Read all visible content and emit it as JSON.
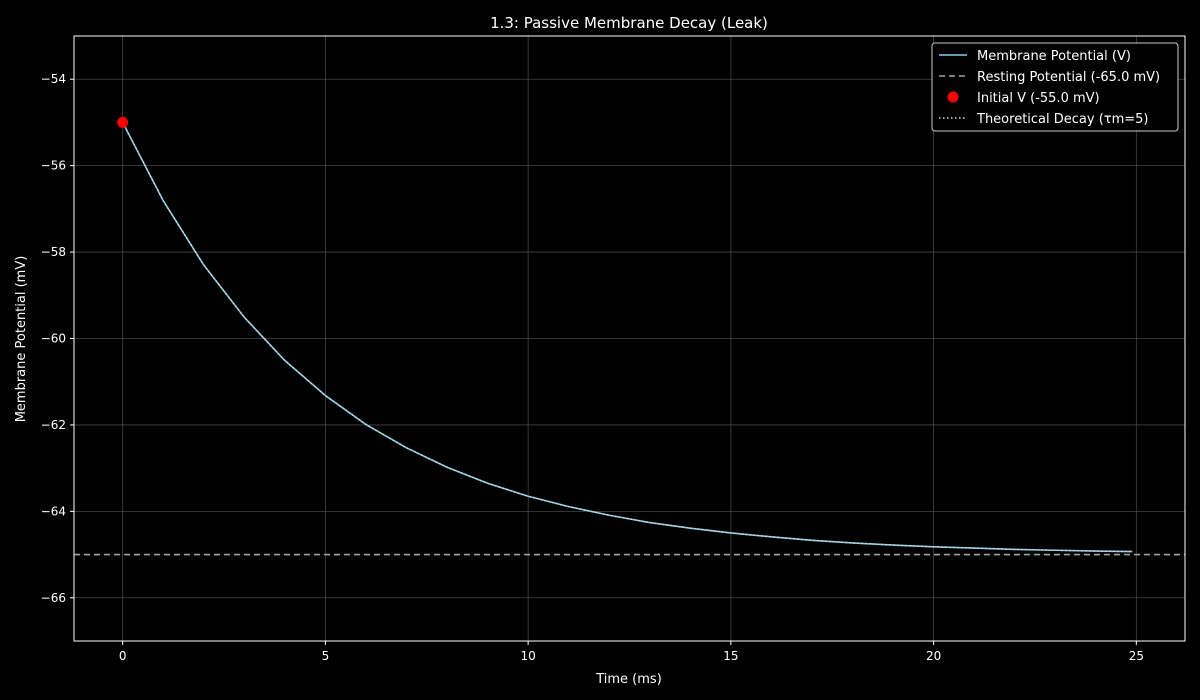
{
  "chart_data": {
    "type": "line",
    "title": "1.3: Passive Membrane Decay (Leak)",
    "xlabel": "Time (ms)",
    "ylabel": "Membrane Potential (mV)",
    "xlim": [
      -1.2,
      26.2
    ],
    "ylim": [
      -67.0,
      -53.0
    ],
    "xticks": [
      0,
      5,
      10,
      15,
      20,
      25
    ],
    "yticks": [
      -54,
      -56,
      -58,
      -60,
      -62,
      -64,
      -66
    ],
    "xtick_labels": [
      "0",
      "5",
      "10",
      "15",
      "20",
      "25"
    ],
    "ytick_labels": [
      "−54",
      "−56",
      "−58",
      "−60",
      "−62",
      "−64",
      "−66"
    ],
    "grid": true,
    "legend_position": "top-right",
    "series": [
      {
        "name": "Membrane Potential (V)",
        "kind": "line",
        "color": "#87ceeb",
        "style": "solid",
        "x": [
          0,
          1,
          2,
          3,
          4,
          5,
          6,
          7,
          8,
          9,
          10,
          11,
          12,
          13,
          14,
          15,
          16,
          17,
          18,
          19,
          20,
          21,
          22,
          23,
          24,
          24.9
        ],
        "y": [
          -55.0,
          -56.81,
          -58.3,
          -59.51,
          -60.51,
          -61.32,
          -61.99,
          -62.53,
          -62.98,
          -63.35,
          -63.65,
          -63.89,
          -64.09,
          -64.26,
          -64.39,
          -64.5,
          -64.59,
          -64.67,
          -64.73,
          -64.78,
          -64.82,
          -64.85,
          -64.88,
          -64.9,
          -64.92,
          -64.93
        ]
      },
      {
        "name": "Resting Potential (-65.0 mV)",
        "kind": "hline",
        "color": "#a0a0a0",
        "style": "dashed",
        "y": -65.0
      },
      {
        "name": "Initial V (-55.0 mV)",
        "kind": "point",
        "color": "#ff0000",
        "x": 0,
        "y": -55.0
      },
      {
        "name": "Theoretical Decay (τm=5)",
        "kind": "line",
        "color": "#d8d8d8",
        "style": "dotted",
        "x": [
          0,
          1,
          2,
          3,
          4,
          5,
          6,
          7,
          8,
          9,
          10,
          11,
          12,
          13,
          14,
          15,
          16,
          17,
          18,
          19,
          20,
          21,
          22,
          23,
          24,
          24.9
        ],
        "y": [
          -55.0,
          -56.81,
          -58.3,
          -59.51,
          -60.51,
          -61.32,
          -61.99,
          -62.53,
          -62.98,
          -63.35,
          -63.65,
          -63.89,
          -64.09,
          -64.26,
          -64.39,
          -64.5,
          -64.59,
          -64.67,
          -64.73,
          -64.78,
          -64.82,
          -64.85,
          -64.88,
          -64.9,
          -64.92,
          -64.93
        ]
      }
    ],
    "colors": {
      "background": "#000000",
      "axes_face": "#000000",
      "text": "#ffffff",
      "grid": "#444444",
      "spine": "#ffffff"
    }
  }
}
